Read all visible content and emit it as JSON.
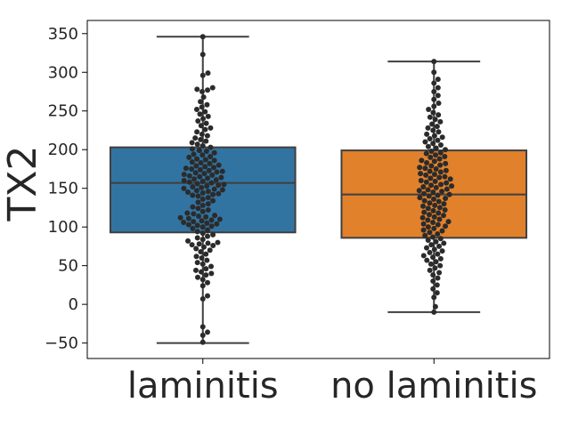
{
  "chart_data": {
    "type": "boxplot",
    "title": "",
    "xlabel": "",
    "ylabel": "TX2",
    "ylim": [
      -70,
      367
    ],
    "yticks": [
      -50,
      0,
      50,
      100,
      150,
      200,
      250,
      300,
      350
    ],
    "ytick_labels": [
      "−50",
      "0",
      "50",
      "100",
      "150",
      "200",
      "250",
      "300",
      "350"
    ],
    "categories": [
      "laminitis",
      "no laminitis"
    ],
    "grid": false,
    "legend": "none",
    "colors": {
      "laminitis": "#3274a1",
      "no laminitis": "#e1812c",
      "line": "#3f3f3f",
      "point": "#2b2b2b"
    },
    "series": [
      {
        "category": "laminitis",
        "whisker_low": -50,
        "q1": 93,
        "median": 157,
        "q3": 203,
        "whisker_high": 346,
        "points": [
          346,
          323,
          299,
          296,
          280,
          278,
          277,
          275,
          268,
          262,
          258,
          255,
          252,
          249,
          246,
          243,
          240,
          237,
          234,
          231,
          228,
          226,
          223,
          220,
          218,
          215,
          213,
          211,
          209,
          207,
          205,
          203,
          201,
          199,
          198,
          196,
          194,
          193,
          191,
          190,
          188,
          187,
          186,
          184,
          183,
          182,
          180,
          179,
          178,
          177,
          176,
          175,
          174,
          173,
          172,
          171,
          170,
          169,
          168,
          167,
          166,
          165,
          164,
          163,
          162,
          161,
          160,
          159,
          158,
          157,
          156,
          155,
          154,
          153,
          152,
          151,
          150,
          149,
          148,
          147,
          146,
          145,
          144,
          143,
          142,
          141,
          140,
          138,
          136,
          134,
          132,
          130,
          128,
          126,
          124,
          122,
          120,
          118,
          117,
          115,
          114,
          113,
          112,
          111,
          110,
          109,
          108,
          107,
          106,
          105,
          104,
          103,
          102,
          101,
          100,
          98,
          96,
          94,
          92,
          90,
          88,
          86,
          84,
          82,
          80,
          79,
          78,
          77,
          76,
          74,
          72,
          70,
          68,
          65,
          62,
          60,
          57,
          54,
          52,
          49,
          46,
          44,
          42,
          40,
          38,
          35,
          32,
          28,
          24,
          11,
          7,
          -29,
          -36,
          -40,
          -49
        ]
      },
      {
        "category": "no laminitis",
        "whisker_low": -10,
        "q1": 86,
        "median": 142,
        "q3": 199,
        "whisker_high": 314,
        "points": [
          314,
          300,
          291,
          286,
          280,
          275,
          270,
          265,
          260,
          256,
          252,
          248,
          245,
          242,
          239,
          236,
          233,
          230,
          228,
          225,
          223,
          220,
          218,
          216,
          214,
          212,
          210,
          208,
          206,
          204,
          202,
          200,
          198,
          196,
          195,
          193,
          191,
          190,
          188,
          186,
          185,
          183,
          182,
          180,
          179,
          177,
          176,
          175,
          173,
          172,
          171,
          169,
          168,
          167,
          165,
          164,
          163,
          162,
          160,
          159,
          158,
          157,
          155,
          154,
          153,
          152,
          151,
          149,
          148,
          147,
          146,
          145,
          143,
          142,
          141,
          140,
          138,
          137,
          136,
          134,
          133,
          131,
          130,
          128,
          127,
          125,
          124,
          122,
          121,
          119,
          118,
          116,
          115,
          113,
          112,
          110,
          109,
          107,
          106,
          104,
          103,
          101,
          100,
          98,
          96,
          95,
          93,
          91,
          89,
          87,
          85,
          83,
          81,
          79,
          77,
          75,
          73,
          71,
          69,
          67,
          65,
          63,
          61,
          59,
          57,
          55,
          52,
          50,
          47,
          44,
          41,
          38,
          34,
          30,
          25,
          20,
          15,
          9,
          -3,
          -10
        ]
      }
    ]
  }
}
